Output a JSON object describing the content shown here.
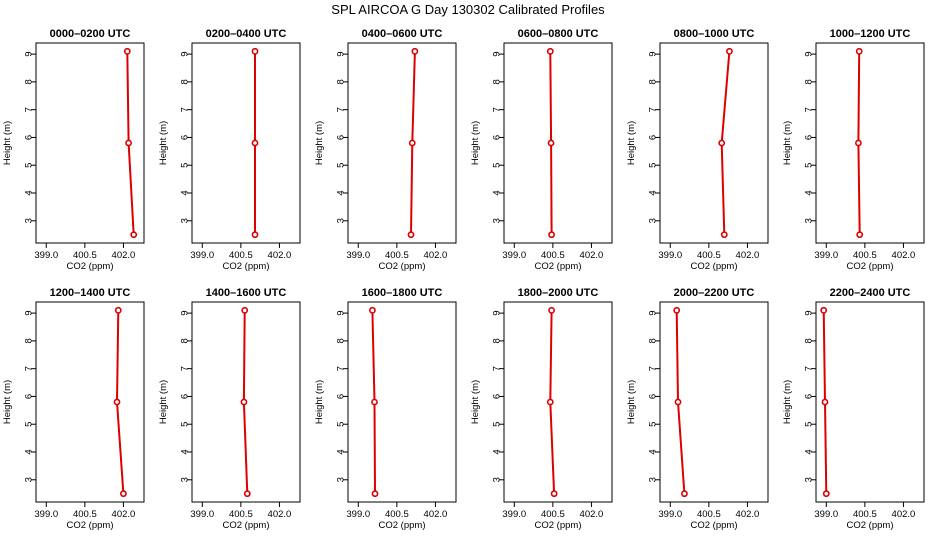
{
  "title": "SPL AIRCOA G  Day 130302  Calibrated Profiles",
  "colors": {
    "profile": "#dd0000",
    "axis": "#000000"
  },
  "chart_data": {
    "type": "line",
    "xlabel": "CO2 (ppm)",
    "ylabel": "Height (m)",
    "xlim": [
      398.6,
      402.8
    ],
    "ylim": [
      2.2,
      9.4
    ],
    "xticks": [
      "399.0",
      "400.5",
      "402.0"
    ],
    "xtick_values": [
      399.0,
      400.5,
      402.0
    ],
    "yticks": [
      "3",
      "4",
      "5",
      "6",
      "7",
      "8",
      "9"
    ],
    "ytick_values": [
      3,
      4,
      5,
      6,
      7,
      8,
      9
    ],
    "heights": [
      2.5,
      5.8,
      9.1
    ],
    "panels": [
      {
        "title": "0000–0200 UTC",
        "co2": [
          402.4,
          402.2,
          402.15
        ]
      },
      {
        "title": "0200–0400 UTC",
        "co2": [
          401.05,
          401.05,
          401.05
        ]
      },
      {
        "title": "0400–0600 UTC",
        "co2": [
          401.05,
          401.1,
          401.2
        ]
      },
      {
        "title": "0600–0800 UTC",
        "co2": [
          400.45,
          400.43,
          400.4
        ]
      },
      {
        "title": "0800–1000 UTC",
        "co2": [
          401.1,
          401.0,
          401.3
        ]
      },
      {
        "title": "1000–1200 UTC",
        "co2": [
          400.3,
          400.25,
          400.28
        ]
      },
      {
        "title": "1200–1400 UTC",
        "co2": [
          402.0,
          401.75,
          401.8
        ]
      },
      {
        "title": "1400–1600 UTC",
        "co2": [
          400.75,
          400.62,
          400.65
        ]
      },
      {
        "title": "1600–1800 UTC",
        "co2": [
          399.65,
          399.63,
          399.55
        ]
      },
      {
        "title": "1800–2000 UTC",
        "co2": [
          400.55,
          400.4,
          400.45
        ]
      },
      {
        "title": "2000–2200 UTC",
        "co2": [
          399.55,
          399.3,
          399.25
        ]
      },
      {
        "title": "2200–2400 UTC",
        "co2": [
          399.0,
          398.95,
          398.9
        ]
      }
    ]
  }
}
